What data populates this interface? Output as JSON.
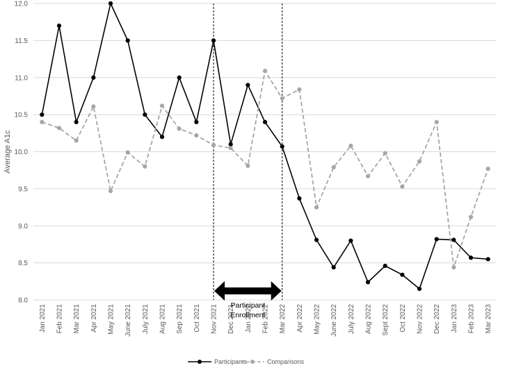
{
  "chart_data": {
    "type": "line",
    "ylabel": "Average A1c",
    "xlabel": "",
    "ylim": [
      8.0,
      12.0
    ],
    "y_ticks": [
      "8.0",
      "8.5",
      "9.0",
      "9.5",
      "10.0",
      "10.5",
      "11.0",
      "11.5",
      "12.0"
    ],
    "categories": [
      "Jan 2021",
      "Feb 2021",
      "Mar 2021",
      "Apr 2021",
      "May 2021",
      "June 2021",
      "July 2021",
      "Aug 2021",
      "Sep 2021",
      "Oct 2021",
      "Nov 2021",
      "Dec 2021",
      "Jan 2022",
      "Feb 2022",
      "Mar 2022",
      "Apr 2022",
      "May 2022",
      "June 2022",
      "July 2022",
      "Aug 2022",
      "Sept 2022",
      "Oct 2022",
      "Nov 2022",
      "Dec 2022",
      "Jan 2023",
      "Feb 2023",
      "Mar 2023"
    ],
    "series": [
      {
        "name": "Participants",
        "color": "#000000",
        "style": "solid",
        "values": [
          10.5,
          11.7,
          10.4,
          11.0,
          12.0,
          11.5,
          10.5,
          10.2,
          11.0,
          10.4,
          11.5,
          10.1,
          10.9,
          10.4,
          10.07,
          9.37,
          8.81,
          8.44,
          8.8,
          8.24,
          8.46,
          8.34,
          8.15,
          8.82,
          8.81,
          8.57,
          8.55
        ]
      },
      {
        "name": "Comparisons",
        "color": "#A6A6A6",
        "style": "dashed",
        "values": [
          10.4,
          10.32,
          10.15,
          10.61,
          9.47,
          9.99,
          9.8,
          10.62,
          10.31,
          10.22,
          10.09,
          10.05,
          9.81,
          11.09,
          10.72,
          10.84,
          9.25,
          9.79,
          10.08,
          9.67,
          9.98,
          9.53,
          9.87,
          10.4,
          8.44,
          9.12,
          9.77
        ]
      }
    ],
    "grid": "horizontal",
    "legend_position": "bottom",
    "annotations": {
      "enrollment_start": "Nov 2021",
      "enrollment_end": "Mar 2022",
      "label_line1": "Participant",
      "label_line2": "Enrollment"
    }
  }
}
